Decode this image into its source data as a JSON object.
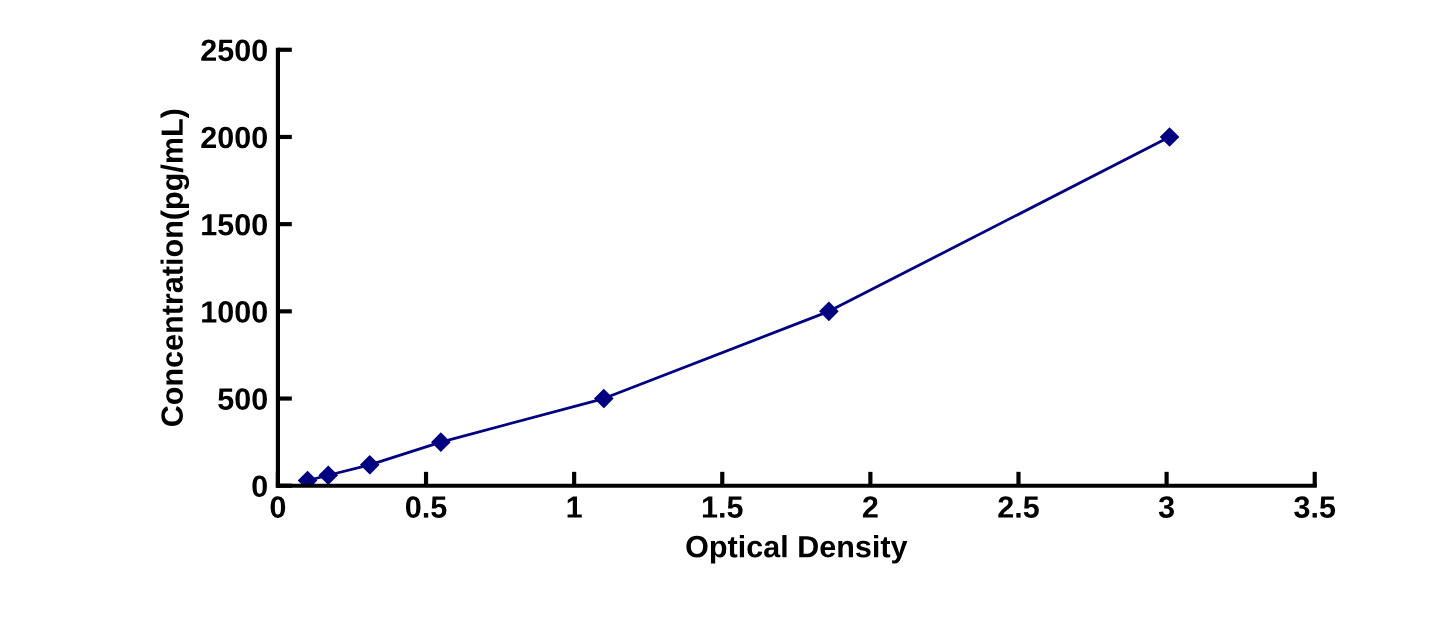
{
  "chart_data": {
    "type": "line",
    "xlabel": "Optical Density",
    "ylabel": "Concentration(pg/mL)",
    "series": [
      {
        "color": "#000080",
        "x": [
          0.1,
          0.17,
          0.31,
          0.55,
          1.1,
          1.86,
          3.01
        ],
        "values": [
          30,
          60,
          120,
          250,
          500,
          1000,
          2000
        ]
      }
    ],
    "xlim": [
      0,
      3.5
    ],
    "xticks": [
      0,
      {
        "value": 0.5,
        "label": "0.5"
      },
      1,
      {
        "value": 1.5,
        "label": "1.5"
      },
      2,
      {
        "value": 2.5,
        "label": "2.5"
      },
      3,
      {
        "value": 3.5,
        "label": "3.5"
      }
    ],
    "ylim": [
      0,
      2500
    ],
    "yticks": [
      0,
      500,
      1000,
      1500,
      2000,
      2500
    ],
    "marker": "diamond",
    "line_style": "solid",
    "grid": false
  }
}
